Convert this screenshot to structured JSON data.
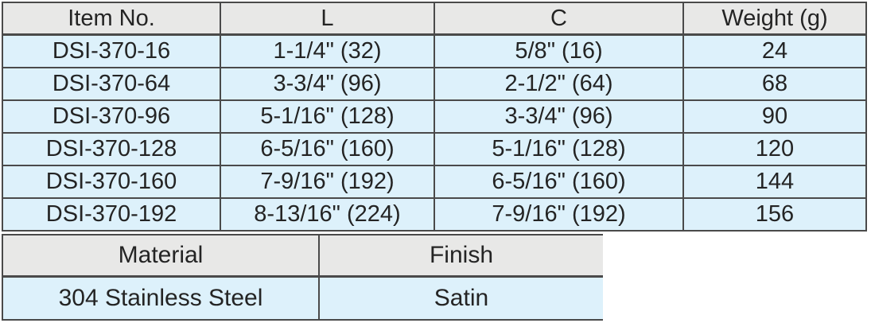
{
  "colors": {
    "header_bg": "#e8e8e7",
    "row_bg": "#ddf1fb",
    "border": "#4a4a4a",
    "text": "#242424"
  },
  "spec_table": {
    "headers": [
      "Item No.",
      "L",
      "C",
      "Weight (g)"
    ],
    "rows": [
      [
        "DSI-370-16",
        "1-1/4\" (32)",
        "5/8\" (16)",
        "24"
      ],
      [
        "DSI-370-64",
        "3-3/4\" (96)",
        "2-1/2\" (64)",
        "68"
      ],
      [
        "DSI-370-96",
        "5-1/16\" (128)",
        "3-3/4\" (96)",
        "90"
      ],
      [
        "DSI-370-128",
        "6-5/16\" (160)",
        "5-1/16\" (128)",
        "120"
      ],
      [
        "DSI-370-160",
        "7-9/16\" (192)",
        "6-5/16\" (160)",
        "144"
      ],
      [
        "DSI-370-192",
        "8-13/16\" (224)",
        "7-9/16\" (192)",
        "156"
      ]
    ]
  },
  "material_table": {
    "headers": [
      "Material",
      "Finish"
    ],
    "rows": [
      [
        "304 Stainless Steel",
        "Satin"
      ]
    ]
  }
}
